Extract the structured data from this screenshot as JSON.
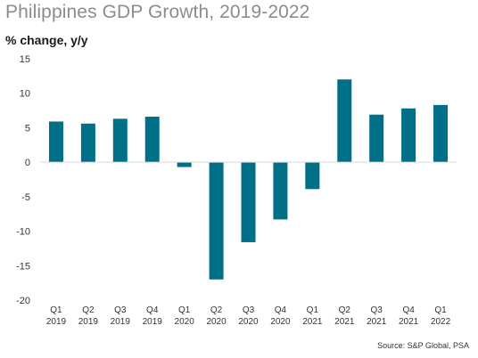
{
  "chart_data": {
    "type": "bar",
    "title": "Philippines GDP Growth, 2019-2022",
    "ylabel": "% change, y/y",
    "xlabel": "",
    "categories": [
      [
        "Q1",
        "2019"
      ],
      [
        "Q2",
        "2019"
      ],
      [
        "Q3",
        "2019"
      ],
      [
        "Q4",
        "2019"
      ],
      [
        "Q1",
        "2020"
      ],
      [
        "Q2",
        "2020"
      ],
      [
        "Q3",
        "2020"
      ],
      [
        "Q4",
        "2020"
      ],
      [
        "Q1",
        "2021"
      ],
      [
        "Q2",
        "2021"
      ],
      [
        "Q3",
        "2021"
      ],
      [
        "Q4",
        "2021"
      ],
      [
        "Q1",
        "2022"
      ]
    ],
    "values": [
      5.9,
      5.6,
      6.3,
      6.6,
      -0.7,
      -17.0,
      -11.6,
      -8.3,
      -3.9,
      12.0,
      6.9,
      7.8,
      8.3
    ],
    "yticks": [
      15,
      10,
      5,
      0,
      -5,
      -10,
      -15,
      -20
    ],
    "ylim": [
      -20,
      15
    ],
    "grid": false,
    "bar_color": "#006f88",
    "source": "Source: S&P Global, PSA"
  }
}
